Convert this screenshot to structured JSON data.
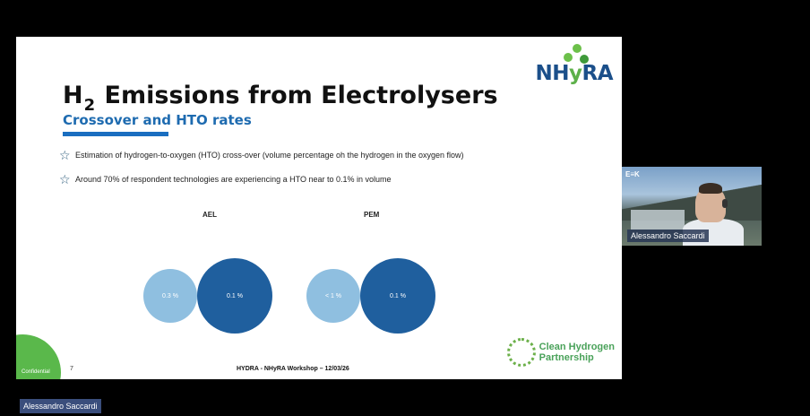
{
  "slide": {
    "logo_prefix": "NH",
    "logo_y": "y",
    "logo_suffix": "RA",
    "title_main": "H",
    "title_sub": "2",
    "title_rest": "Emissions from Electrolysers",
    "subtitle": "Crossover and HTO rates",
    "bullets": [
      "Estimation of hydrogen-to-oxygen (HTO) cross-over (volume percentage oh the hydrogen in the oxygen flow)",
      "Around 70% of respondent technologies are experiencing a HTO near to 0.1% in volume"
    ],
    "charts": [
      {
        "label": "AEL",
        "small_value": "0.3 %",
        "big_value": "0.1 %"
      },
      {
        "label": "PEM",
        "small_value": "< 1 %",
        "big_value": "0.1 %"
      }
    ],
    "confidential": "Confidential",
    "page_number": "7",
    "footer": "HYDRA - NHyRA Workshop – 12/03/26",
    "partner_line1": "Clean Hydrogen",
    "partner_line2": "Partnership"
  },
  "video": {
    "logo_text": "E≡K",
    "name": "Alessandro Saccardi"
  },
  "bottom_name": "Alessandro Saccardi",
  "colors": {
    "accent_blue": "#1e6bb0",
    "circle_light": "#8fbfe0",
    "circle_dark": "#1f5f9e",
    "green": "#5ab84b"
  }
}
